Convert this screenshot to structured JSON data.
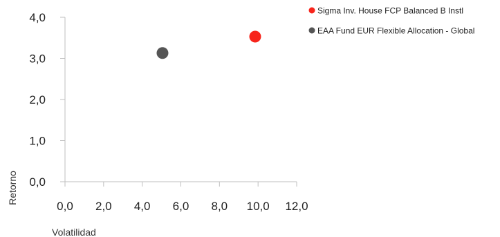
{
  "chart_data": {
    "type": "scatter",
    "title": "",
    "xlabel": "Volatilidad",
    "ylabel": "Retorno",
    "xlim": [
      0,
      12
    ],
    "ylim": [
      0,
      4
    ],
    "x_ticks": [
      "0,0",
      "2,0",
      "4,0",
      "6,0",
      "8,0",
      "10,0",
      "12,0"
    ],
    "y_ticks": [
      "0,0",
      "1,0",
      "2,0",
      "3,0",
      "4,0"
    ],
    "grid": false,
    "legend_position": "top-right",
    "series": [
      {
        "name": "Sigma Inv. House FCP Balanced B Instl",
        "color": "#f7251c",
        "points": [
          {
            "x": 9.85,
            "y": 3.53
          }
        ]
      },
      {
        "name": "EAA Fund EUR Flexible Allocation - Global",
        "color": "#555555",
        "points": [
          {
            "x": 5.05,
            "y": 3.13
          }
        ]
      }
    ]
  }
}
